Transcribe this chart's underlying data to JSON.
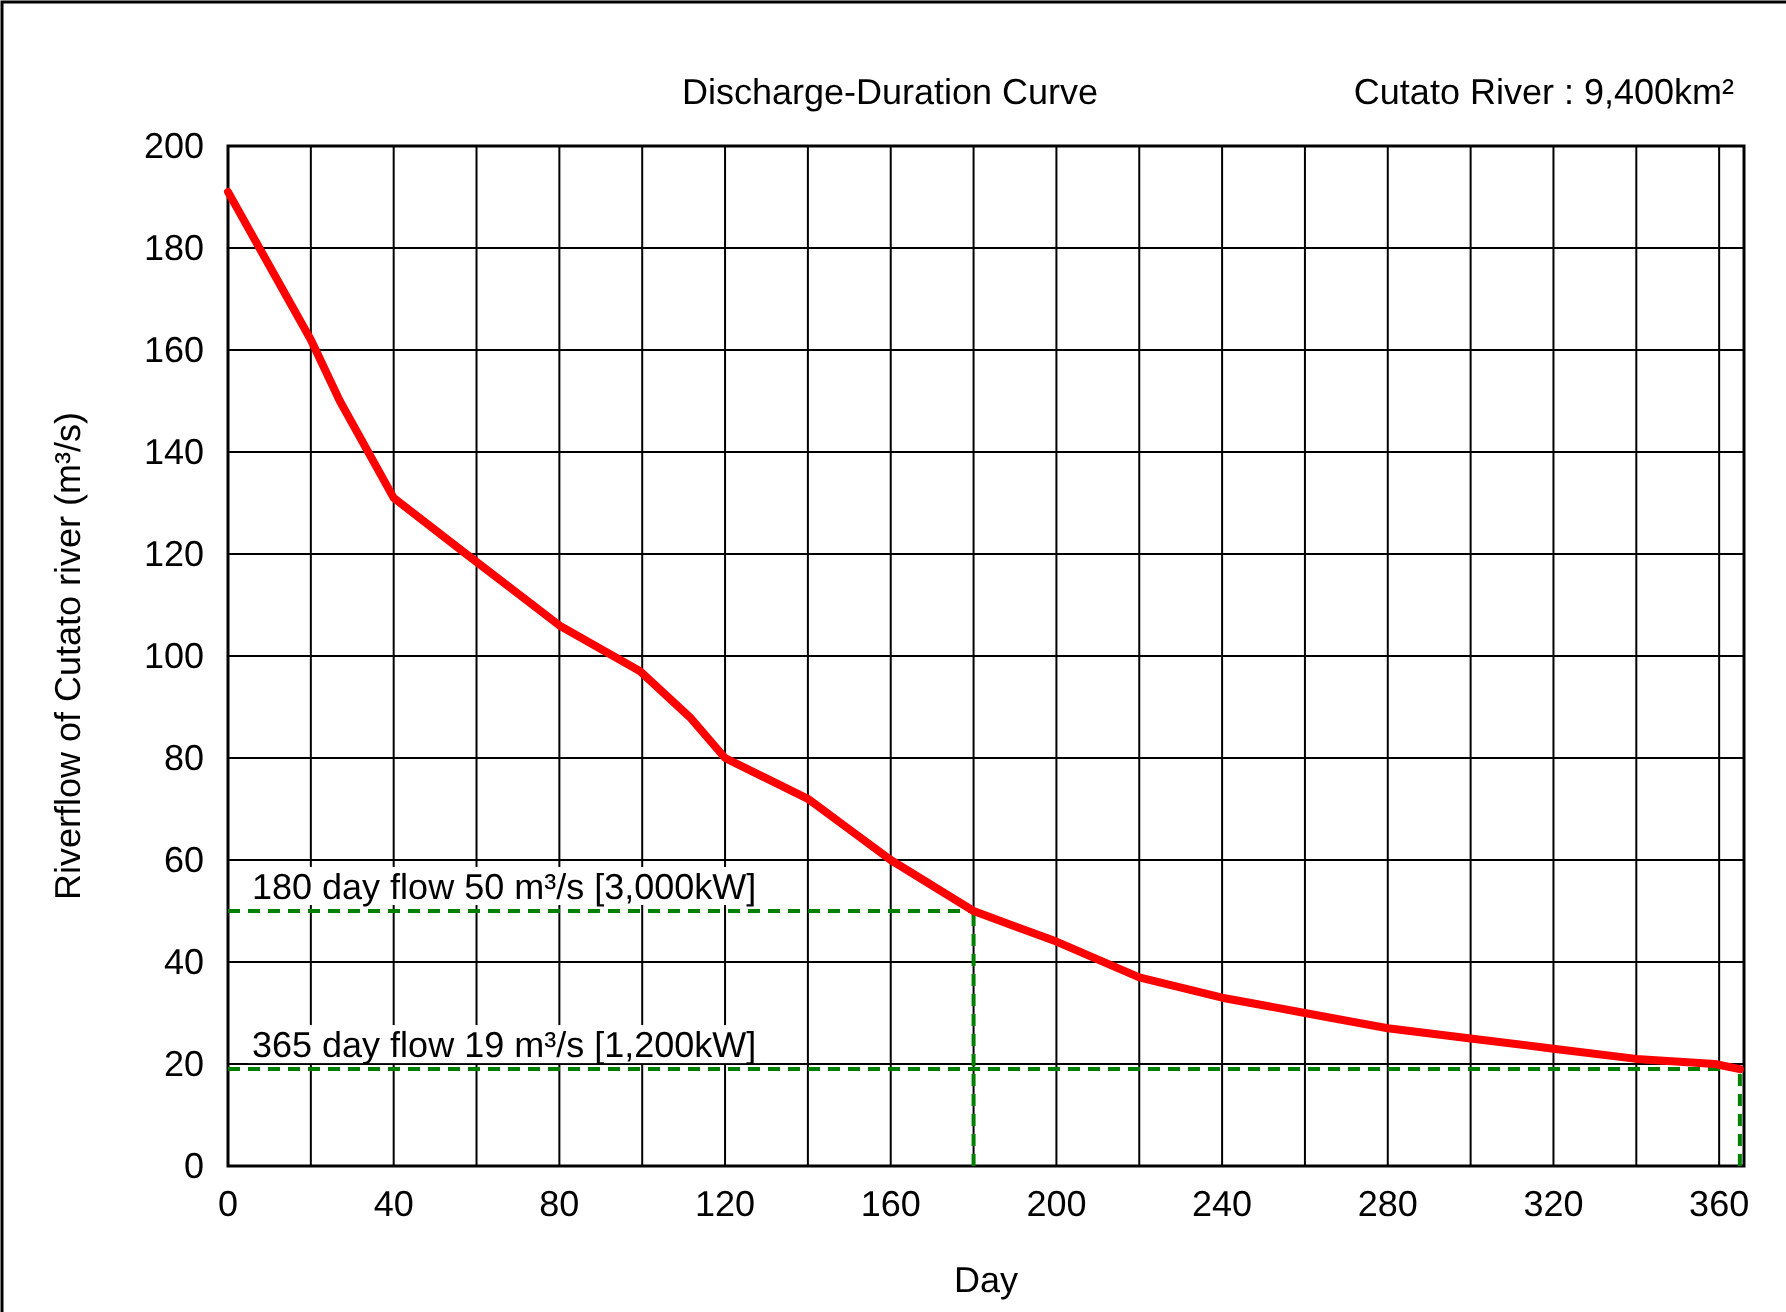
{
  "chart_data": {
    "type": "line",
    "title": "Discharge-Duration Curve",
    "subtitle": "Cutato River : 9,400km²",
    "xlabel": "Day",
    "ylabel": "Riverflow of Cutato river (m³/s)",
    "xlim": [
      0,
      366
    ],
    "xticks": [
      0,
      {
        "value": 20,
        "label": null
      },
      40,
      {
        "value": 60,
        "label": null
      },
      80,
      {
        "value": 100,
        "label": null
      },
      120,
      {
        "value": 140,
        "label": null
      },
      160,
      {
        "value": 180,
        "label": null
      },
      200,
      {
        "value": 220,
        "label": null
      },
      240,
      {
        "value": 260,
        "label": null
      },
      280,
      {
        "value": 300,
        "label": null
      },
      320,
      {
        "value": 340,
        "label": null
      },
      360
    ],
    "ylim": [
      0,
      200
    ],
    "yticks": [
      0,
      20,
      40,
      60,
      80,
      100,
      120,
      140,
      160,
      180,
      200
    ],
    "grid": true,
    "marker": "none",
    "line_style": "solid",
    "series": [
      {
        "color": "#ff0000",
        "x": [
          0,
          20,
          27,
          40,
          57.5,
          80,
          99.5,
          111.5,
          120,
          130,
          140,
          150,
          160,
          170,
          180,
          200,
          220,
          240,
          260,
          280,
          300,
          320,
          340,
          359,
          365
        ],
        "values": [
          191,
          162,
          150,
          131,
          120,
          106,
          97,
          88,
          80,
          76,
          72,
          66,
          60,
          55,
          50,
          44,
          37,
          33,
          30,
          27,
          25,
          23,
          21,
          20,
          19
        ]
      }
    ],
    "ref_lines": [
      {
        "axis": "y",
        "value": 50,
        "label": "180 day flow 50 m³/s [3,000kW]",
        "color": "#008000",
        "line_style": "dashed"
      },
      {
        "axis": "x",
        "value": 180,
        "label": null,
        "color": "#008000",
        "line_style": "dashed"
      },
      {
        "axis": "y",
        "value": 19,
        "label": "365 day flow 19 m³/s [1,200kW]",
        "color": "#008000",
        "line_style": "dashed"
      },
      {
        "axis": "x",
        "value": 365,
        "label": null,
        "color": "#008000",
        "line_style": "dashed"
      }
    ]
  }
}
